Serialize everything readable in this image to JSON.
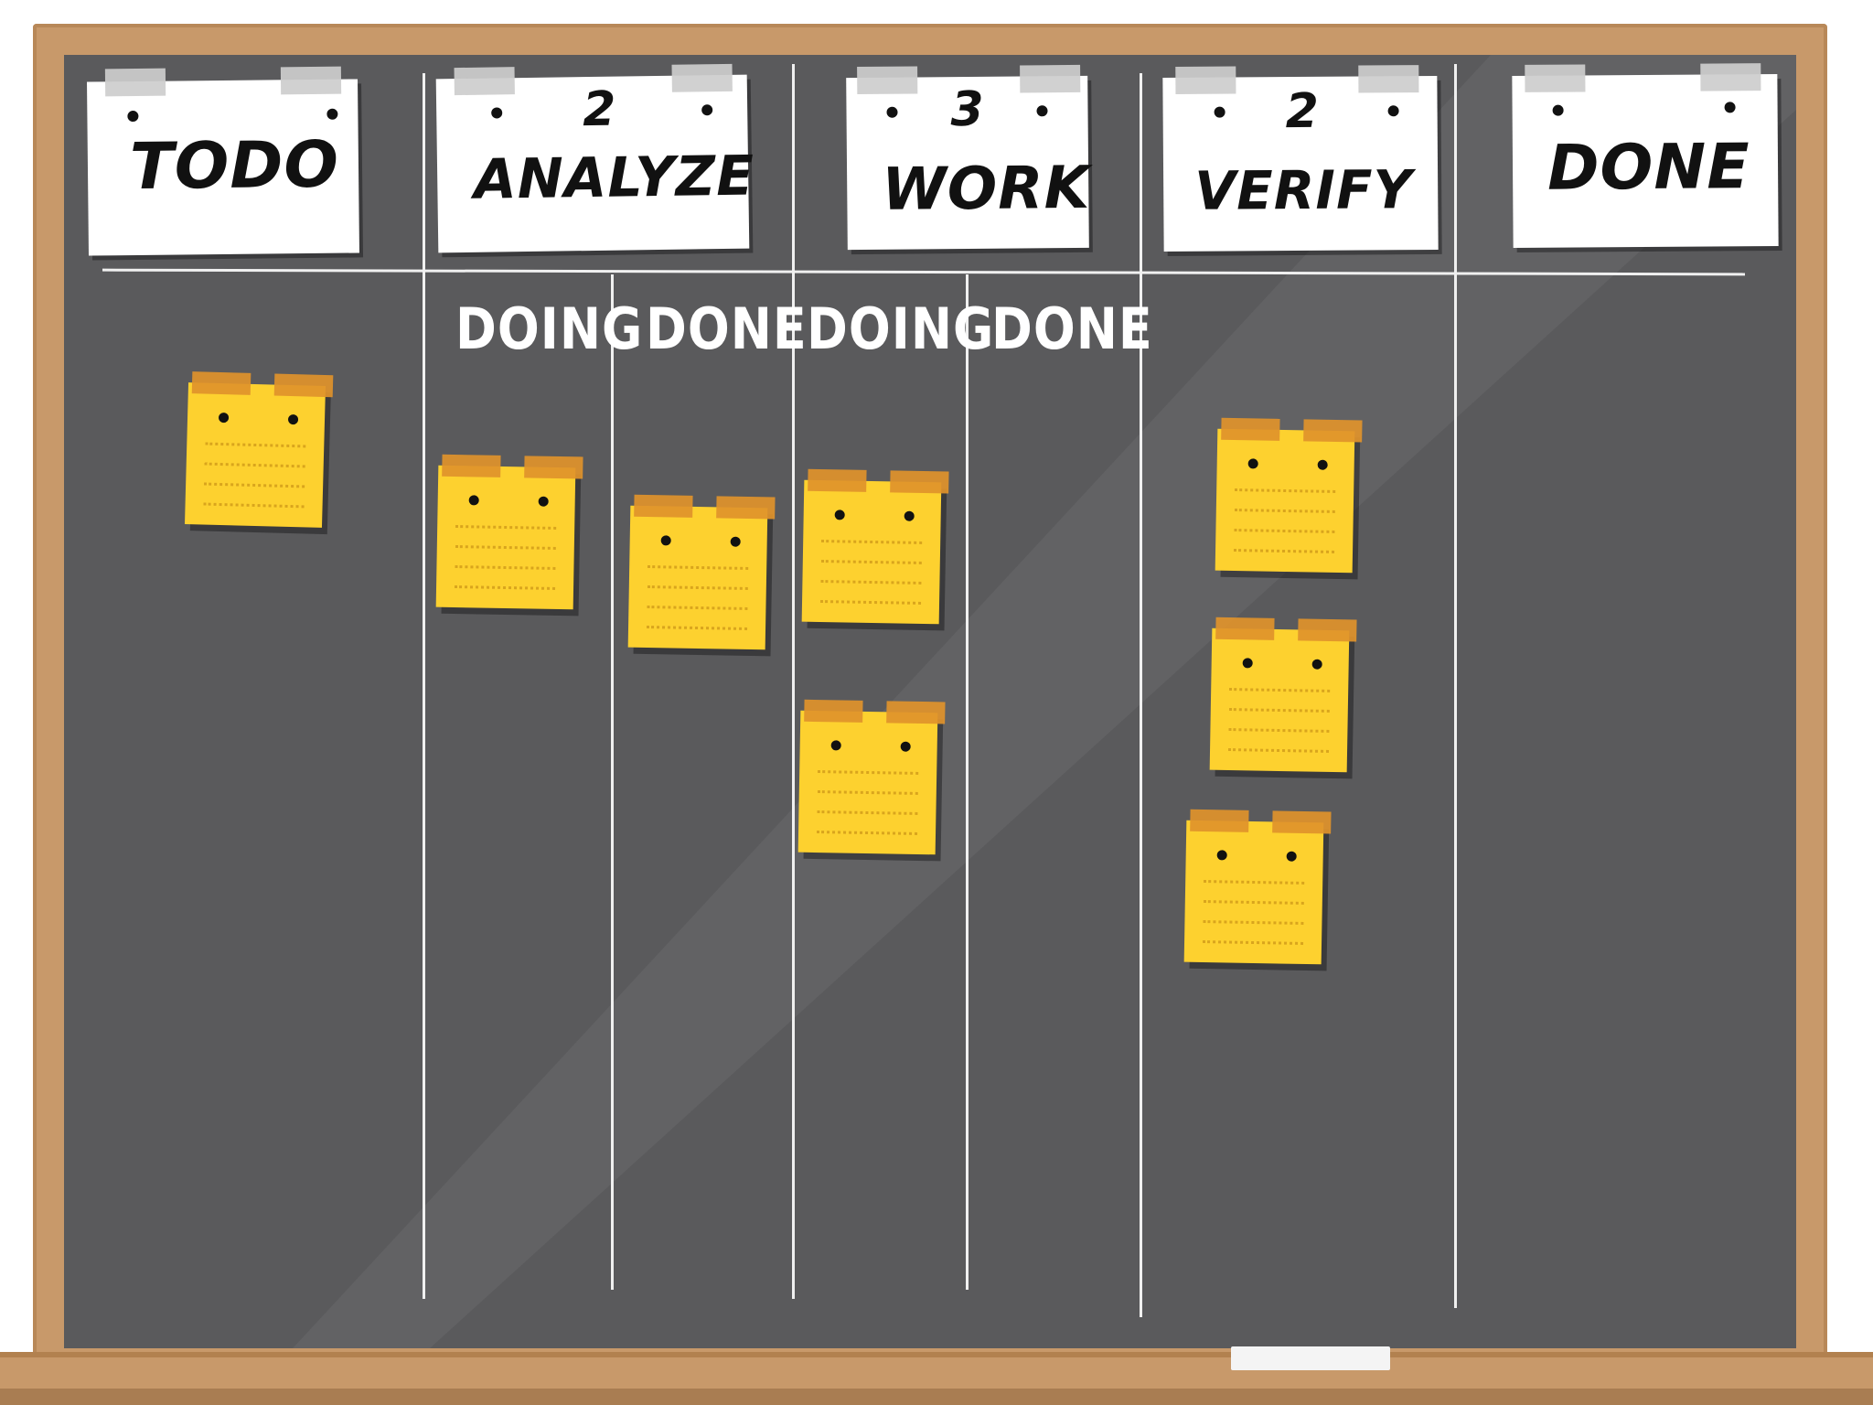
{
  "board": {
    "columns": [
      {
        "title": "TODO",
        "wip": ""
      },
      {
        "title": "ANALYZE",
        "wip": "2"
      },
      {
        "title": "WORK",
        "wip": "3"
      },
      {
        "title": "VERIFY",
        "wip": "2"
      },
      {
        "title": "DONE",
        "wip": ""
      }
    ],
    "subcolumns": {
      "analyze_doing": "DOING",
      "analyze_done": "DONE",
      "work_doing": "DOING",
      "work_done": "DONE"
    },
    "card_counts": {
      "todo": 1,
      "analyze_doing": 1,
      "analyze_done": 1,
      "work_doing": 2,
      "work_done": 0,
      "verify": 3,
      "done": 0
    }
  },
  "colors": {
    "board": "#5a5a5c",
    "frame": "#c8996a",
    "note": "#fdd12f",
    "note_tape": "#e0932b",
    "chalk_line": "#f0f0f0"
  }
}
